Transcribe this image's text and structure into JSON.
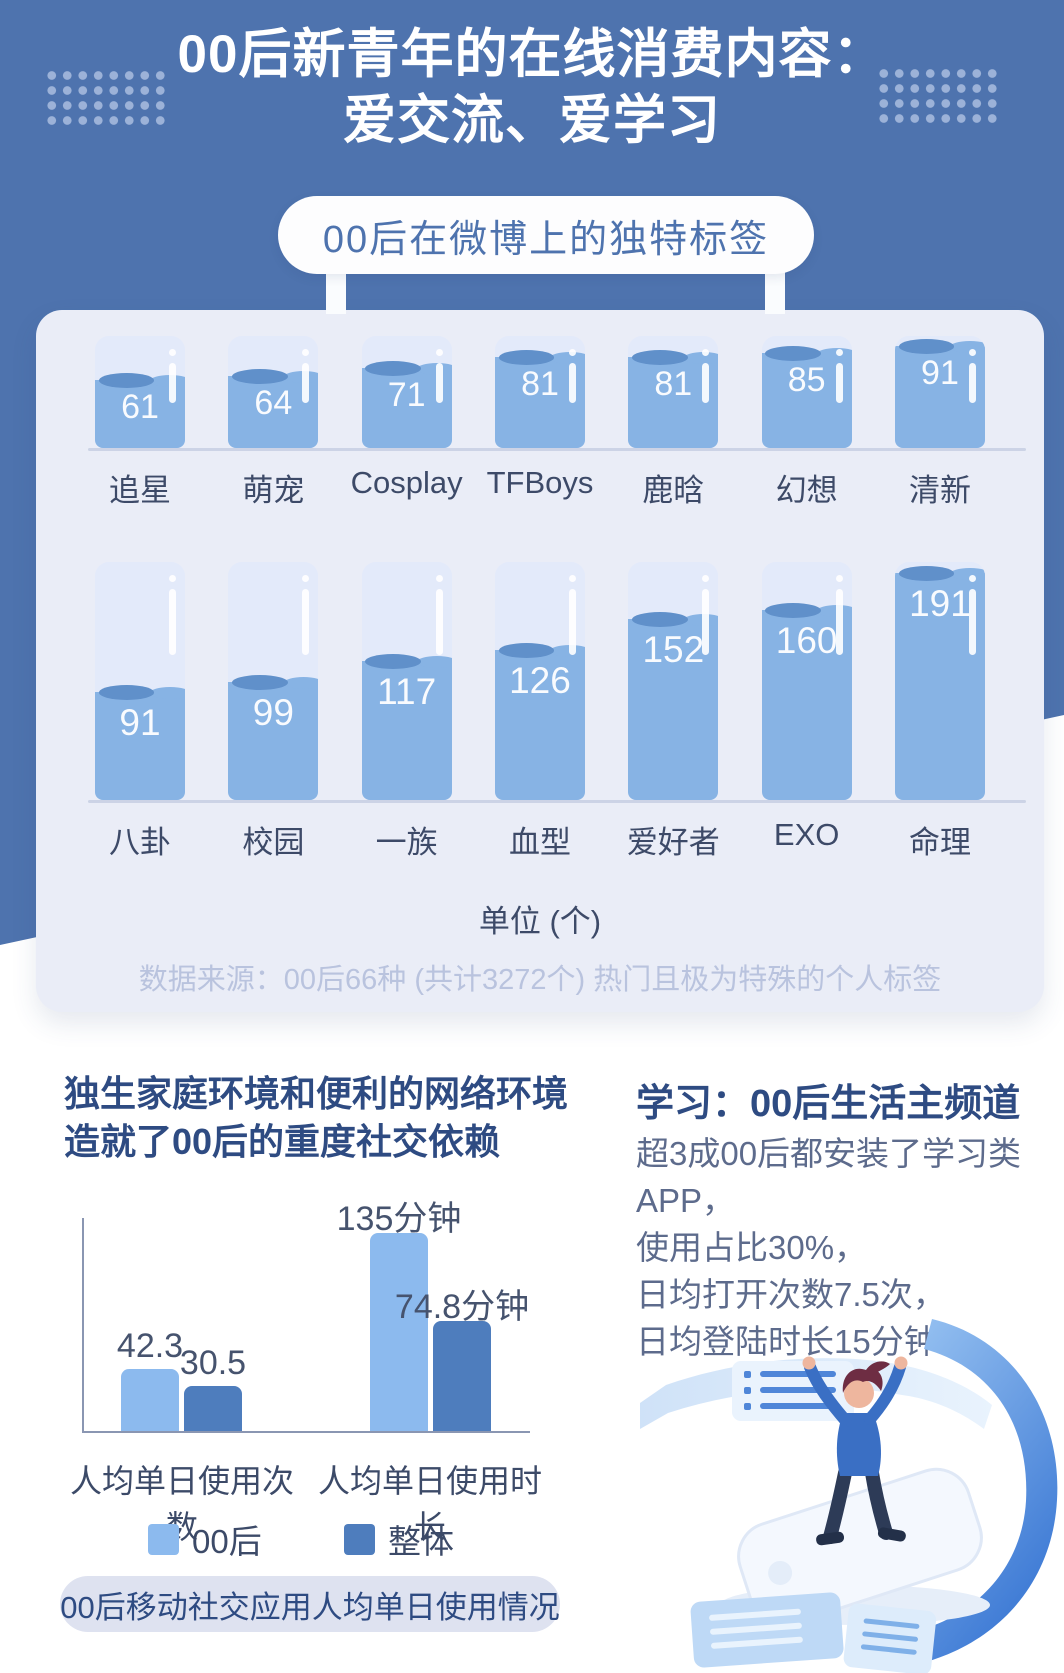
{
  "theme": {
    "accent_blue": "#4e73ae",
    "panel_bg": "#eaedf7",
    "water_light": "#87b3e4",
    "water_dark": "#6090ca",
    "bar_light": "#8cbaee",
    "bar_dark": "#4e7dbd",
    "text_dark": "#3d4a68",
    "heading_navy": "#2e4b82",
    "muted_note": "#b9c3de"
  },
  "header": {
    "title_line1": "00后新青年的在线消费内容：",
    "title_line2": "爱交流、爱学习",
    "badge": "00后在微博上的独特标签"
  },
  "chart_data": [
    {
      "type": "bar",
      "title": "00后在微博上的独特标签",
      "ylabel": "单位 (个)",
      "note": "数据来源：00后66种 (共计3272个) 热门且极为特殊的个人标签",
      "rows": [
        {
          "categories": [
            "追星",
            "萌宠",
            "Cosplay",
            "TFBoys",
            "鹿晗",
            "幻想",
            "清新"
          ],
          "values": [
            61,
            64,
            71,
            81,
            81,
            85,
            91
          ],
          "ylim": [
            0,
            100
          ]
        },
        {
          "categories": [
            "八卦",
            "校园",
            "一族",
            "血型",
            "爱好者",
            "EXO",
            "命理"
          ],
          "values": [
            91,
            99,
            117,
            126,
            152,
            160,
            191
          ],
          "ylim": [
            0,
            200
          ]
        }
      ]
    },
    {
      "type": "bar",
      "title": "00后移动社交应用人均单日使用情况",
      "categories": [
        "人均单日使用次数",
        "人均单日使用时长"
      ],
      "series": [
        {
          "name": "00后",
          "values": [
            42.3,
            135
          ],
          "color": "#8cbaee"
        },
        {
          "name": "整体",
          "values": [
            30.5,
            74.8
          ],
          "color": "#4e7dbd"
        }
      ],
      "value_labels": [
        [
          "42.3",
          "135分钟"
        ],
        [
          "30.5",
          "74.8分钟"
        ]
      ],
      "ylim": [
        0,
        145
      ],
      "grid": false,
      "legend_position": "bottom"
    }
  ],
  "social": {
    "heading_line1": "独生家庭环境和便利的网络环境",
    "heading_line2": "造就了00后的重度社交依赖",
    "caption": "00后移动社交应用人均单日使用情况"
  },
  "study": {
    "heading": "学习：00后生活主频道",
    "lines": [
      "超3成00后都安装了学习类APP，",
      "使用占比30%，",
      "日均打开次数7.5次，",
      "日均登陆时长15分钟"
    ]
  }
}
